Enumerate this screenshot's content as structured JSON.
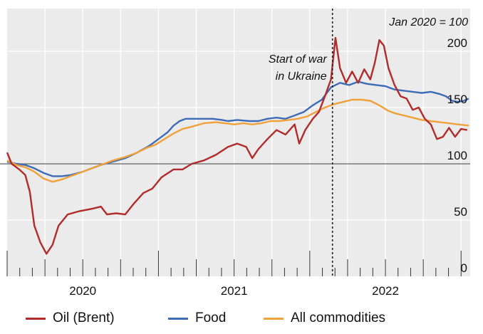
{
  "chart_data": {
    "type": "line",
    "unit_note": "Jan 2020 = 100",
    "annotation": [
      "Start of war",
      "in Ukraine"
    ],
    "event_date": 2022.15,
    "x_labels": [
      {
        "text": "2020",
        "x": 2020.5
      },
      {
        "text": "2021",
        "x": 2021.5
      },
      {
        "text": "2022",
        "x": 2022.5
      }
    ],
    "y_ticks": [
      {
        "text": "0",
        "value": 0
      },
      {
        "text": "50",
        "value": 50
      },
      {
        "text": "100",
        "value": 100
      },
      {
        "text": "150",
        "value": 150
      },
      {
        "text": "200",
        "value": 200
      }
    ],
    "ylim": [
      0,
      238
    ],
    "xlim": [
      2020.0,
      2023.06
    ],
    "baseline": 100,
    "series": [
      {
        "name": "Oil (Brent)",
        "color": "#b22a2a",
        "points": [
          [
            2020.0,
            110
          ],
          [
            2020.03,
            100
          ],
          [
            2020.08,
            95
          ],
          [
            2020.12,
            90
          ],
          [
            2020.15,
            75
          ],
          [
            2020.18,
            45
          ],
          [
            2020.22,
            30
          ],
          [
            2020.26,
            20
          ],
          [
            2020.3,
            28
          ],
          [
            2020.34,
            45
          ],
          [
            2020.4,
            55
          ],
          [
            2020.48,
            58
          ],
          [
            2020.56,
            60
          ],
          [
            2020.62,
            62
          ],
          [
            2020.66,
            55
          ],
          [
            2020.72,
            56
          ],
          [
            2020.78,
            55
          ],
          [
            2020.84,
            65
          ],
          [
            2020.9,
            74
          ],
          [
            2020.96,
            78
          ],
          [
            2021.02,
            88
          ],
          [
            2021.1,
            95
          ],
          [
            2021.16,
            95
          ],
          [
            2021.22,
            100
          ],
          [
            2021.3,
            103
          ],
          [
            2021.38,
            108
          ],
          [
            2021.46,
            115
          ],
          [
            2021.52,
            118
          ],
          [
            2021.58,
            115
          ],
          [
            2021.62,
            105
          ],
          [
            2021.66,
            113
          ],
          [
            2021.72,
            122
          ],
          [
            2021.78,
            130
          ],
          [
            2021.84,
            126
          ],
          [
            2021.9,
            135
          ],
          [
            2021.93,
            118
          ],
          [
            2021.97,
            130
          ],
          [
            2022.02,
            140
          ],
          [
            2022.06,
            146
          ],
          [
            2022.1,
            160
          ],
          [
            2022.14,
            175
          ],
          [
            2022.17,
            212
          ],
          [
            2022.2,
            185
          ],
          [
            2022.24,
            172
          ],
          [
            2022.28,
            182
          ],
          [
            2022.32,
            172
          ],
          [
            2022.36,
            184
          ],
          [
            2022.4,
            175
          ],
          [
            2022.43,
            190
          ],
          [
            2022.46,
            210
          ],
          [
            2022.49,
            205
          ],
          [
            2022.52,
            185
          ],
          [
            2022.56,
            170
          ],
          [
            2022.6,
            160
          ],
          [
            2022.64,
            158
          ],
          [
            2022.68,
            148
          ],
          [
            2022.72,
            150
          ],
          [
            2022.76,
            140
          ],
          [
            2022.8,
            135
          ],
          [
            2022.84,
            122
          ],
          [
            2022.88,
            124
          ],
          [
            2022.92,
            132
          ],
          [
            2022.96,
            124
          ],
          [
            2023.0,
            131
          ],
          [
            2023.04,
            130
          ]
        ]
      },
      {
        "name": "Food",
        "color": "#3d6bb8",
        "points": [
          [
            2020.0,
            102
          ],
          [
            2020.06,
            100
          ],
          [
            2020.12,
            99
          ],
          [
            2020.18,
            96
          ],
          [
            2020.24,
            92
          ],
          [
            2020.3,
            89
          ],
          [
            2020.36,
            89
          ],
          [
            2020.42,
            90
          ],
          [
            2020.5,
            93
          ],
          [
            2020.56,
            96
          ],
          [
            2020.62,
            99
          ],
          [
            2020.7,
            102
          ],
          [
            2020.78,
            105
          ],
          [
            2020.86,
            110
          ],
          [
            2020.94,
            116
          ],
          [
            2021.0,
            122
          ],
          [
            2021.06,
            128
          ],
          [
            2021.1,
            134
          ],
          [
            2021.14,
            138
          ],
          [
            2021.18,
            140
          ],
          [
            2021.24,
            140
          ],
          [
            2021.3,
            140
          ],
          [
            2021.36,
            140
          ],
          [
            2021.42,
            139
          ],
          [
            2021.46,
            138
          ],
          [
            2021.52,
            139
          ],
          [
            2021.6,
            138
          ],
          [
            2021.66,
            138
          ],
          [
            2021.72,
            140
          ],
          [
            2021.78,
            141
          ],
          [
            2021.84,
            140
          ],
          [
            2021.9,
            143
          ],
          [
            2021.96,
            146
          ],
          [
            2022.02,
            152
          ],
          [
            2022.08,
            157
          ],
          [
            2022.14,
            168
          ],
          [
            2022.2,
            172
          ],
          [
            2022.26,
            170
          ],
          [
            2022.32,
            173
          ],
          [
            2022.38,
            171
          ],
          [
            2022.44,
            170
          ],
          [
            2022.5,
            169
          ],
          [
            2022.56,
            166
          ],
          [
            2022.62,
            165
          ],
          [
            2022.68,
            164
          ],
          [
            2022.74,
            163
          ],
          [
            2022.8,
            164
          ],
          [
            2022.86,
            162
          ],
          [
            2022.9,
            160
          ],
          [
            2022.94,
            156
          ],
          [
            2022.98,
            155
          ],
          [
            2023.02,
            156
          ],
          [
            2023.05,
            158
          ]
        ]
      },
      {
        "name": "All commodities",
        "color": "#f0a13a",
        "points": [
          [
            2020.0,
            103
          ],
          [
            2020.06,
            99
          ],
          [
            2020.12,
            97
          ],
          [
            2020.18,
            93
          ],
          [
            2020.24,
            87
          ],
          [
            2020.3,
            84
          ],
          [
            2020.36,
            86
          ],
          [
            2020.42,
            89
          ],
          [
            2020.5,
            93
          ],
          [
            2020.56,
            96
          ],
          [
            2020.62,
            99
          ],
          [
            2020.7,
            103
          ],
          [
            2020.78,
            106
          ],
          [
            2020.86,
            110
          ],
          [
            2020.92,
            114
          ],
          [
            2020.98,
            117
          ],
          [
            2021.04,
            122
          ],
          [
            2021.1,
            127
          ],
          [
            2021.16,
            131
          ],
          [
            2021.22,
            133
          ],
          [
            2021.3,
            136
          ],
          [
            2021.38,
            137
          ],
          [
            2021.44,
            136
          ],
          [
            2021.5,
            135
          ],
          [
            2021.56,
            136
          ],
          [
            2021.62,
            135
          ],
          [
            2021.68,
            136
          ],
          [
            2021.74,
            138
          ],
          [
            2021.8,
            138
          ],
          [
            2021.86,
            139
          ],
          [
            2021.92,
            140
          ],
          [
            2021.98,
            142
          ],
          [
            2022.04,
            146
          ],
          [
            2022.1,
            150
          ],
          [
            2022.16,
            153
          ],
          [
            2022.22,
            155
          ],
          [
            2022.28,
            157
          ],
          [
            2022.34,
            157
          ],
          [
            2022.4,
            156
          ],
          [
            2022.46,
            152
          ],
          [
            2022.52,
            147
          ],
          [
            2022.56,
            145
          ],
          [
            2022.62,
            143
          ],
          [
            2022.68,
            141
          ],
          [
            2022.74,
            139
          ],
          [
            2022.8,
            138
          ],
          [
            2022.86,
            137
          ],
          [
            2022.92,
            136
          ],
          [
            2022.98,
            135
          ],
          [
            2023.05,
            134
          ]
        ]
      }
    ]
  }
}
